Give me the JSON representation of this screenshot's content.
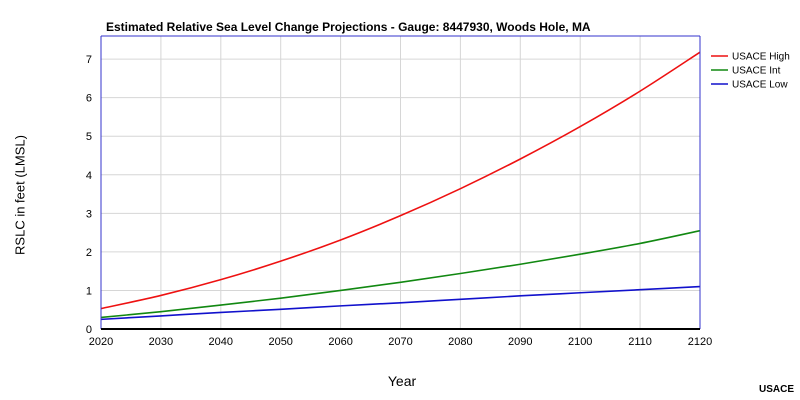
{
  "chart_data": {
    "type": "line",
    "title": "Estimated Relative Sea Level Change Projections - Gauge: 8447930, Woods Hole, MA",
    "xlabel": "Year",
    "ylabel": "RSLC in feet (LMSL)",
    "xlim": [
      2020,
      2120
    ],
    "ylim": [
      0,
      7.6
    ],
    "xticks": [
      2020,
      2030,
      2040,
      2050,
      2060,
      2070,
      2080,
      2090,
      2100,
      2110,
      2120
    ],
    "yticks": [
      0,
      1,
      2,
      3,
      4,
      5,
      6,
      7
    ],
    "grid": true,
    "legend_position": "top-right",
    "x": [
      2020,
      2030,
      2040,
      2050,
      2060,
      2070,
      2080,
      2090,
      2100,
      2110,
      2120
    ],
    "series": [
      {
        "name": "USACE High",
        "color": "#ee1111",
        "values": [
          0.53,
          0.87,
          1.28,
          1.76,
          2.31,
          2.94,
          3.64,
          4.41,
          5.25,
          6.17,
          7.18
        ]
      },
      {
        "name": "USACE Int",
        "color": "#118811",
        "values": [
          0.3,
          0.45,
          0.62,
          0.8,
          1.0,
          1.21,
          1.44,
          1.68,
          1.94,
          2.22,
          2.55
        ]
      },
      {
        "name": "USACE Low",
        "color": "#1111cc",
        "values": [
          0.25,
          0.34,
          0.43,
          0.51,
          0.6,
          0.68,
          0.77,
          0.86,
          0.94,
          1.02,
          1.1
        ]
      }
    ]
  },
  "credit": "USACE"
}
